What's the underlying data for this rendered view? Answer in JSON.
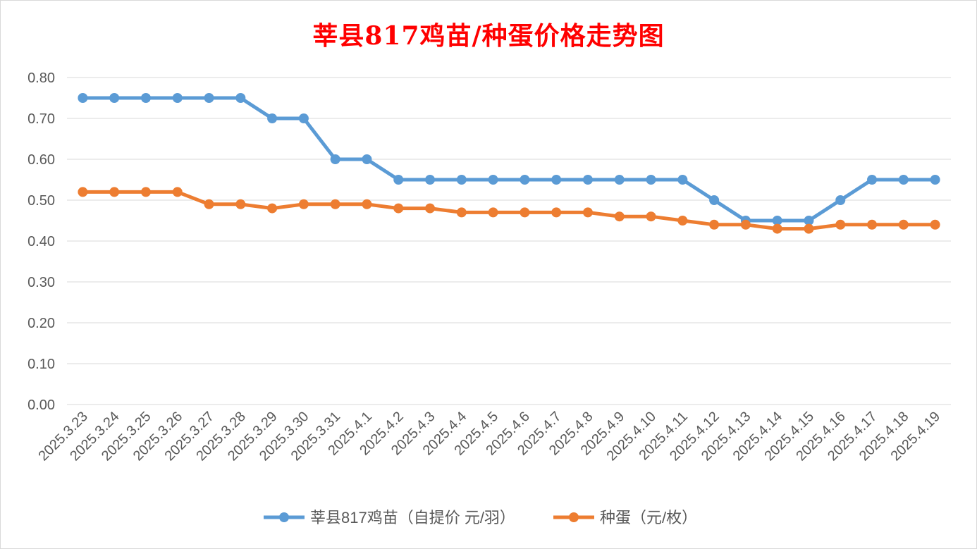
{
  "chart_data": {
    "type": "line",
    "title": "莘县817鸡苗/种蛋价格走势图",
    "categories": [
      "2025.3.23",
      "2025.3.24",
      "2025.3.25",
      "2025.3.26",
      "2025.3.27",
      "2025.3.28",
      "2025.3.29",
      "2025.3.30",
      "2025.3.31",
      "2025.4.1",
      "2025.4.2",
      "2025.4.3",
      "2025.4.4",
      "2025.4.5",
      "2025.4.6",
      "2025.4.7",
      "2025.4.8",
      "2025.4.9",
      "2025.4.10",
      "2025.4.11",
      "2025.4.12",
      "2025.4.13",
      "2025.4.14",
      "2025.4.15",
      "2025.4.16",
      "2025.4.17",
      "2025.4.18",
      "2025.4.19"
    ],
    "series": [
      {
        "name": "莘县817鸡苗（自提价 元/羽）",
        "color": "#5b9bd5",
        "values": [
          0.75,
          0.75,
          0.75,
          0.75,
          0.75,
          0.75,
          0.7,
          0.7,
          0.6,
          0.6,
          0.55,
          0.55,
          0.55,
          0.55,
          0.55,
          0.55,
          0.55,
          0.55,
          0.55,
          0.55,
          0.5,
          0.45,
          0.45,
          0.45,
          0.5,
          0.55,
          0.55,
          0.55
        ]
      },
      {
        "name": "种蛋（元/枚）",
        "color": "#ed7d31",
        "values": [
          0.52,
          0.52,
          0.52,
          0.52,
          0.49,
          0.49,
          0.48,
          0.49,
          0.49,
          0.49,
          0.48,
          0.48,
          0.47,
          0.47,
          0.47,
          0.47,
          0.47,
          0.46,
          0.46,
          0.45,
          0.44,
          0.44,
          0.43,
          0.43,
          0.44,
          0.44,
          0.44,
          0.44
        ]
      }
    ],
    "ylim": [
      0,
      0.8
    ],
    "yticks": [
      "0.00",
      "0.10",
      "0.20",
      "0.30",
      "0.40",
      "0.50",
      "0.60",
      "0.70",
      "0.80"
    ],
    "grid": true,
    "legend": "bottom",
    "title_color": "#ff0000"
  }
}
